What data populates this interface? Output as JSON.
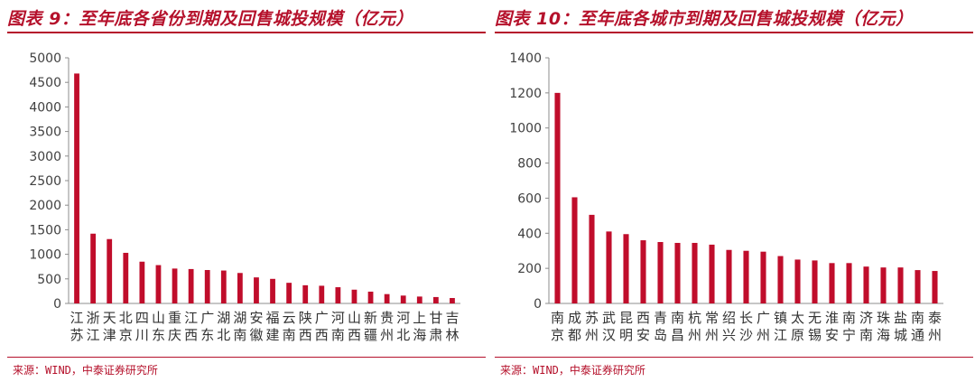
{
  "chart_data": [
    {
      "type": "bar",
      "title": "图表 9：至年底各省份到期及回售城投规模（亿元）",
      "xlabel": "",
      "ylabel": "",
      "ylim": [
        0,
        5000
      ],
      "yticks": [
        0,
        500,
        1000,
        1500,
        2000,
        2500,
        3000,
        3500,
        4000,
        4500,
        5000
      ],
      "grid": false,
      "bar_color": "#c00d2b",
      "categories": [
        "江苏",
        "浙江",
        "天津",
        "北京",
        "四川",
        "山东",
        "重庆",
        "江西",
        "广东",
        "湖北",
        "湖南",
        "安徽",
        "福建",
        "云南",
        "陕西",
        "广西",
        "河南",
        "山西",
        "新疆",
        "贵州",
        "河北",
        "上海",
        "甘肃",
        "吉林"
      ],
      "values": [
        4680,
        1420,
        1310,
        1030,
        850,
        780,
        710,
        700,
        680,
        670,
        620,
        530,
        500,
        420,
        370,
        360,
        330,
        280,
        240,
        190,
        160,
        140,
        130,
        110
      ],
      "source": "来源：WIND，中泰证券研究所"
    },
    {
      "type": "bar",
      "title": "图表 10：至年底各城市到期及回售城投规模（亿元）",
      "xlabel": "",
      "ylabel": "",
      "ylim": [
        0,
        1400
      ],
      "yticks": [
        0,
        200,
        400,
        600,
        800,
        1000,
        1200,
        1400
      ],
      "grid": false,
      "bar_color": "#c00d2b",
      "categories": [
        "南京",
        "成都",
        "苏州",
        "武汉",
        "昆明",
        "西安",
        "青岛",
        "南昌",
        "杭州",
        "常州",
        "绍兴",
        "长沙",
        "广州",
        "镇江",
        "太原",
        "无锡",
        "淮安",
        "南宁",
        "济南",
        "珠海",
        "盐城",
        "南通",
        "泰州"
      ],
      "values": [
        1200,
        605,
        505,
        410,
        395,
        360,
        350,
        345,
        345,
        335,
        305,
        300,
        295,
        270,
        250,
        245,
        230,
        230,
        210,
        205,
        205,
        190,
        185
      ],
      "source": "来源：WIND，中泰证券研究所"
    }
  ]
}
